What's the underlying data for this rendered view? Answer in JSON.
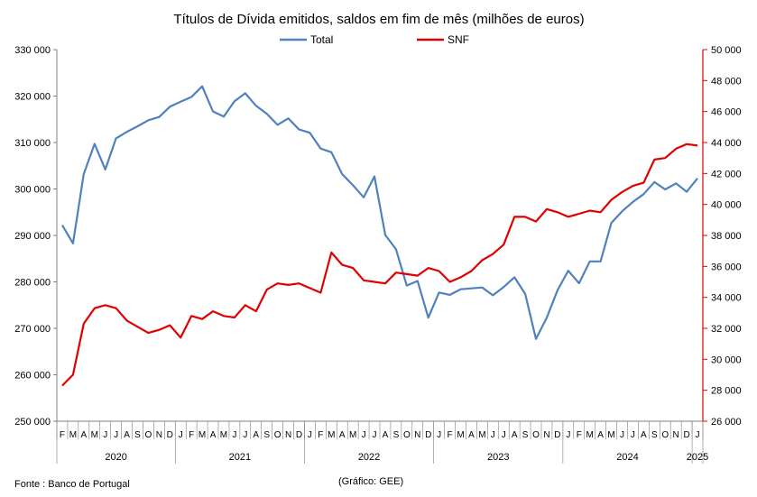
{
  "chart_data": {
    "type": "line",
    "title": "Títulos de Dívida emitidos, saldos em fim de mês  (milhões de euros)",
    "legend_position": "top-center",
    "grid": false,
    "left_axis": {
      "range": [
        250000,
        330000
      ],
      "ticks": [
        250000,
        260000,
        270000,
        280000,
        290000,
        300000,
        310000,
        320000,
        330000
      ],
      "tick_labels": [
        "250 000",
        "260 000",
        "270 000",
        "280 000",
        "290 000",
        "300 000",
        "310 000",
        "320 000",
        "330 000"
      ],
      "color": "#000000"
    },
    "right_axis": {
      "range": [
        26000,
        50000
      ],
      "ticks": [
        26000,
        28000,
        30000,
        32000,
        34000,
        36000,
        38000,
        40000,
        42000,
        44000,
        46000,
        48000,
        50000
      ],
      "tick_labels": [
        "26 000",
        "28 000",
        "30 000",
        "32 000",
        "34 000",
        "36 000",
        "38 000",
        "40 000",
        "42 000",
        "44 000",
        "46 000",
        "48 000",
        "50 000"
      ],
      "color": "#e00000"
    },
    "month_labels": [
      "F",
      "M",
      "A",
      "M",
      "J",
      "J",
      "A",
      "S",
      "O",
      "N",
      "D",
      "J",
      "F",
      "M",
      "A",
      "M",
      "J",
      "J",
      "A",
      "S",
      "O",
      "N",
      "D",
      "J",
      "F",
      "M",
      "A",
      "M",
      "J",
      "J",
      "A",
      "S",
      "O",
      "N",
      "D",
      "J",
      "F",
      "M",
      "A",
      "M",
      "J",
      "J",
      "A",
      "S",
      "O",
      "N",
      "D",
      "J",
      "F",
      "M",
      "A",
      "M",
      "J",
      "J",
      "A",
      "S",
      "O",
      "N",
      "D",
      "J"
    ],
    "year_groups": [
      {
        "label": "2020",
        "months": 11
      },
      {
        "label": "2021",
        "months": 12
      },
      {
        "label": "2022",
        "months": 12
      },
      {
        "label": "2023",
        "months": 12
      },
      {
        "label": "2024",
        "months": 12
      },
      {
        "label": "2025",
        "months": 1
      }
    ],
    "series": [
      {
        "name": "Total",
        "axis": "left",
        "color": "#4f81bd",
        "values": [
          292200,
          288300,
          303200,
          309700,
          304200,
          310900,
          312300,
          313500,
          314800,
          315500,
          317700,
          318800,
          319800,
          322100,
          316700,
          315600,
          318900,
          320600,
          317900,
          316200,
          313800,
          315200,
          312800,
          312100,
          308700,
          307900,
          303200,
          300800,
          298200,
          302700,
          290100,
          287000,
          279200,
          280200,
          272300,
          277700,
          277200,
          278400,
          278600,
          278800,
          277100,
          278900,
          281000,
          277400,
          267700,
          272300,
          278200,
          282400,
          279700,
          284400,
          284400,
          292700,
          295200,
          297200,
          298900,
          301500,
          299900,
          301200,
          299400,
          302300
        ]
      },
      {
        "name": "SNF",
        "axis": "right",
        "color": "#e00000",
        "values": [
          28300,
          29000,
          32300,
          33300,
          33500,
          33300,
          32500,
          32100,
          31700,
          31900,
          32200,
          31400,
          32800,
          32600,
          33100,
          32800,
          32700,
          33500,
          33100,
          34500,
          34900,
          34800,
          34900,
          34600,
          34300,
          36900,
          36100,
          35900,
          35100,
          35000,
          34900,
          35600,
          35500,
          35400,
          35900,
          35700,
          35000,
          35300,
          35700,
          36400,
          36800,
          37400,
          39200,
          39200,
          38900,
          39700,
          39500,
          39200,
          39400,
          39600,
          39500,
          40300,
          40800,
          41200,
          41400,
          42900,
          43000,
          43600,
          43900,
          43800
        ]
      }
    ]
  },
  "footer": {
    "source": "Fonte : Banco de Portugal",
    "credit": "(Gráfico: GEE)"
  }
}
